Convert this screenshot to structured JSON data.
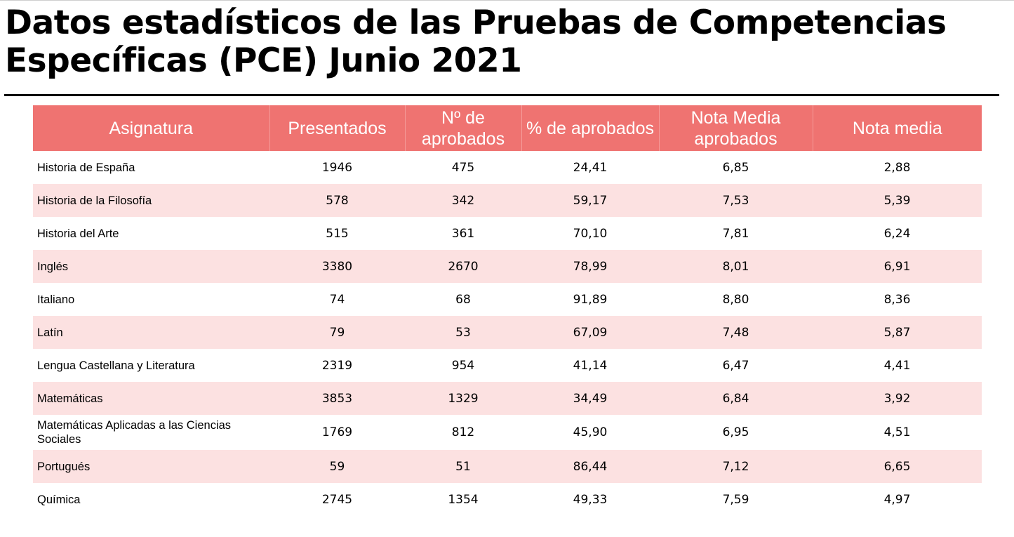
{
  "title": "Datos estadísticos de las Pruebas de Competencias Específicas (PCE) Junio 2021",
  "colors": {
    "header_background": "#ef7371",
    "header_text": "#ffffff",
    "alternate_row": "#fce1e1"
  },
  "table": {
    "columns": [
      "Asignatura",
      "Presentados",
      "Nº de aprobados",
      "% de aprobados",
      "Nota Media aprobados",
      "Nota media"
    ],
    "rows": [
      [
        "Historia de España",
        "1946",
        "475",
        "24,41",
        "6,85",
        "2,88"
      ],
      [
        "Historia de la Filosofía",
        "578",
        "342",
        "59,17",
        "7,53",
        "5,39"
      ],
      [
        "Historia del Arte",
        "515",
        "361",
        "70,10",
        "7,81",
        "6,24"
      ],
      [
        "Inglés",
        "3380",
        "2670",
        "78,99",
        "8,01",
        "6,91"
      ],
      [
        "Italiano",
        "74",
        "68",
        "91,89",
        "8,80",
        "8,36"
      ],
      [
        "Latín",
        "79",
        "53",
        "67,09",
        "7,48",
        "5,87"
      ],
      [
        "Lengua Castellana y Literatura",
        "2319",
        "954",
        "41,14",
        "6,47",
        "4,41"
      ],
      [
        "Matemáticas",
        "3853",
        "1329",
        "34,49",
        "6,84",
        "3,92"
      ],
      [
        "Matemáticas Aplicadas a las Ciencias Sociales",
        "1769",
        "812",
        "45,90",
        "6,95",
        "4,51"
      ],
      [
        "Portugués",
        "59",
        "51",
        "86,44",
        "7,12",
        "6,65"
      ],
      [
        "Química",
        "2745",
        "1354",
        "49,33",
        "7,59",
        "4,97"
      ]
    ]
  }
}
